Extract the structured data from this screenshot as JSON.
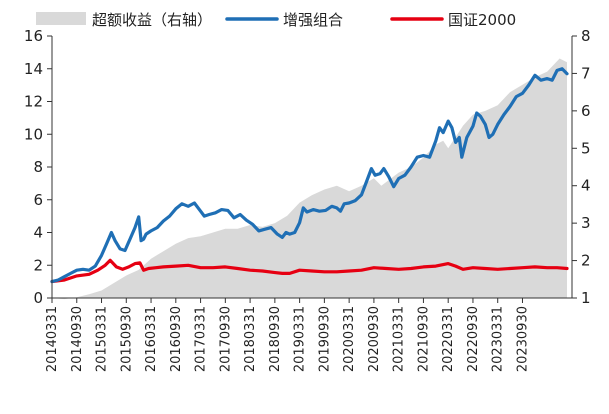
{
  "chart_data": {
    "type": "line",
    "legend": {
      "position": "top",
      "entries": [
        {
          "label": "超额收益（右轴）",
          "color": "#d9d9d9",
          "kind": "area"
        },
        {
          "label": "增强组合",
          "color": "#1f6fb5",
          "kind": "line"
        },
        {
          "label": "国证2000",
          "color": "#e60012",
          "kind": "line"
        }
      ]
    },
    "y_left": {
      "min": 0,
      "max": 16,
      "ticks": [
        "0",
        "2",
        "4",
        "6",
        "8",
        "10",
        "12",
        "14",
        "16"
      ]
    },
    "y_right": {
      "min": 1,
      "max": 8,
      "ticks": [
        "1",
        "2",
        "3",
        "4",
        "5",
        "6",
        "7",
        "8"
      ]
    },
    "x_ticks": [
      "20140331",
      "20140930",
      "20150331",
      "20150930",
      "20160331",
      "20160930",
      "20170331",
      "20170930",
      "20180331",
      "20180930",
      "20190331",
      "20190930",
      "20200331",
      "20200930",
      "20210331",
      "20210930",
      "20220331",
      "20220930",
      "20230331",
      "20230930"
    ],
    "grid": false,
    "series": [
      {
        "name": "增强组合",
        "axis": "left",
        "color": "#1f6fb5",
        "points": [
          [
            0,
            1.0
          ],
          [
            0.25,
            1.1
          ],
          [
            0.5,
            1.3
          ],
          [
            0.75,
            1.5
          ],
          [
            1.0,
            1.7
          ],
          [
            1.25,
            1.75
          ],
          [
            1.5,
            1.7
          ],
          [
            1.75,
            1.95
          ],
          [
            2.0,
            2.6
          ],
          [
            2.2,
            3.3
          ],
          [
            2.4,
            4.0
          ],
          [
            2.55,
            3.5
          ],
          [
            2.75,
            3.0
          ],
          [
            2.95,
            2.9
          ],
          [
            3.15,
            3.6
          ],
          [
            3.35,
            4.3
          ],
          [
            3.5,
            4.95
          ],
          [
            3.6,
            3.5
          ],
          [
            3.7,
            3.6
          ],
          [
            3.8,
            3.9
          ],
          [
            4.0,
            4.1
          ],
          [
            4.25,
            4.3
          ],
          [
            4.5,
            4.7
          ],
          [
            4.75,
            5.0
          ],
          [
            5.0,
            5.45
          ],
          [
            5.25,
            5.75
          ],
          [
            5.5,
            5.6
          ],
          [
            5.75,
            5.8
          ],
          [
            6.0,
            5.3
          ],
          [
            6.15,
            5.0
          ],
          [
            6.35,
            5.1
          ],
          [
            6.6,
            5.2
          ],
          [
            6.85,
            5.4
          ],
          [
            7.1,
            5.35
          ],
          [
            7.35,
            4.9
          ],
          [
            7.6,
            5.1
          ],
          [
            7.85,
            4.75
          ],
          [
            8.1,
            4.5
          ],
          [
            8.35,
            4.1
          ],
          [
            8.6,
            4.2
          ],
          [
            8.85,
            4.3
          ],
          [
            9.1,
            3.9
          ],
          [
            9.3,
            3.7
          ],
          [
            9.45,
            4.0
          ],
          [
            9.6,
            3.9
          ],
          [
            9.8,
            4.0
          ],
          [
            10.0,
            4.6
          ],
          [
            10.15,
            5.5
          ],
          [
            10.3,
            5.25
          ],
          [
            10.55,
            5.4
          ],
          [
            10.8,
            5.3
          ],
          [
            11.05,
            5.35
          ],
          [
            11.3,
            5.6
          ],
          [
            11.5,
            5.5
          ],
          [
            11.65,
            5.3
          ],
          [
            11.8,
            5.75
          ],
          [
            12.0,
            5.8
          ],
          [
            12.25,
            5.95
          ],
          [
            12.5,
            6.3
          ],
          [
            12.75,
            7.3
          ],
          [
            12.9,
            7.9
          ],
          [
            13.05,
            7.5
          ],
          [
            13.25,
            7.6
          ],
          [
            13.4,
            7.9
          ],
          [
            13.6,
            7.4
          ],
          [
            13.8,
            6.8
          ],
          [
            14.0,
            7.3
          ],
          [
            14.25,
            7.5
          ],
          [
            14.5,
            8.0
          ],
          [
            14.75,
            8.6
          ],
          [
            15.0,
            8.7
          ],
          [
            15.25,
            8.6
          ],
          [
            15.5,
            9.6
          ],
          [
            15.65,
            10.4
          ],
          [
            15.8,
            10.1
          ],
          [
            16.0,
            10.8
          ],
          [
            16.15,
            10.4
          ],
          [
            16.3,
            9.5
          ],
          [
            16.45,
            9.8
          ],
          [
            16.55,
            8.6
          ],
          [
            16.75,
            9.8
          ],
          [
            17.0,
            10.5
          ],
          [
            17.15,
            11.3
          ],
          [
            17.3,
            11.1
          ],
          [
            17.5,
            10.6
          ],
          [
            17.65,
            9.8
          ],
          [
            17.8,
            10.0
          ],
          [
            18.0,
            10.6
          ],
          [
            18.25,
            11.2
          ],
          [
            18.5,
            11.7
          ],
          [
            18.75,
            12.3
          ],
          [
            19.0,
            12.5
          ],
          [
            19.25,
            13.0
          ],
          [
            19.5,
            13.6
          ],
          [
            19.75,
            13.3
          ],
          [
            20.0,
            13.4
          ],
          [
            20.2,
            13.3
          ],
          [
            20.4,
            13.9
          ],
          [
            20.6,
            14.0
          ],
          [
            20.8,
            13.7
          ]
        ]
      },
      {
        "name": "国证2000",
        "axis": "left",
        "color": "#e60012",
        "points": [
          [
            0,
            1.0
          ],
          [
            0.5,
            1.1
          ],
          [
            1.0,
            1.35
          ],
          [
            1.5,
            1.45
          ],
          [
            1.85,
            1.7
          ],
          [
            2.15,
            2.0
          ],
          [
            2.35,
            2.3
          ],
          [
            2.6,
            1.9
          ],
          [
            2.85,
            1.75
          ],
          [
            3.1,
            1.9
          ],
          [
            3.35,
            2.1
          ],
          [
            3.55,
            2.15
          ],
          [
            3.7,
            1.7
          ],
          [
            3.9,
            1.8
          ],
          [
            4.2,
            1.85
          ],
          [
            4.5,
            1.9
          ],
          [
            5.0,
            1.95
          ],
          [
            5.5,
            2.0
          ],
          [
            6.0,
            1.85
          ],
          [
            6.5,
            1.85
          ],
          [
            7.0,
            1.9
          ],
          [
            7.5,
            1.8
          ],
          [
            8.0,
            1.7
          ],
          [
            8.5,
            1.65
          ],
          [
            9.0,
            1.55
          ],
          [
            9.3,
            1.5
          ],
          [
            9.6,
            1.5
          ],
          [
            10.0,
            1.7
          ],
          [
            10.5,
            1.65
          ],
          [
            11.0,
            1.6
          ],
          [
            11.5,
            1.6
          ],
          [
            12.0,
            1.65
          ],
          [
            12.5,
            1.7
          ],
          [
            13.0,
            1.85
          ],
          [
            13.5,
            1.8
          ],
          [
            14.0,
            1.75
          ],
          [
            14.5,
            1.8
          ],
          [
            15.0,
            1.9
          ],
          [
            15.5,
            1.95
          ],
          [
            16.0,
            2.1
          ],
          [
            16.3,
            1.95
          ],
          [
            16.6,
            1.75
          ],
          [
            17.0,
            1.85
          ],
          [
            17.5,
            1.8
          ],
          [
            18.0,
            1.75
          ],
          [
            18.5,
            1.8
          ],
          [
            19.0,
            1.85
          ],
          [
            19.5,
            1.9
          ],
          [
            20.0,
            1.85
          ],
          [
            20.4,
            1.85
          ],
          [
            20.8,
            1.8
          ]
        ]
      },
      {
        "name": "超额收益（右轴）",
        "axis": "right",
        "color": "#d9d9d9",
        "type": "area",
        "points": [
          [
            0,
            1.0
          ],
          [
            0.5,
            0.97
          ],
          [
            1.0,
            1.02
          ],
          [
            1.5,
            1.1
          ],
          [
            2.0,
            1.2
          ],
          [
            2.5,
            1.4
          ],
          [
            3.0,
            1.6
          ],
          [
            3.5,
            1.75
          ],
          [
            4.0,
            2.05
          ],
          [
            4.5,
            2.25
          ],
          [
            5.0,
            2.45
          ],
          [
            5.5,
            2.6
          ],
          [
            6.0,
            2.65
          ],
          [
            6.5,
            2.75
          ],
          [
            7.0,
            2.85
          ],
          [
            7.5,
            2.85
          ],
          [
            8.0,
            2.95
          ],
          [
            8.5,
            2.9
          ],
          [
            9.0,
            3.0
          ],
          [
            9.5,
            3.2
          ],
          [
            10.0,
            3.55
          ],
          [
            10.5,
            3.75
          ],
          [
            11.0,
            3.9
          ],
          [
            11.5,
            4.0
          ],
          [
            12.0,
            3.85
          ],
          [
            12.5,
            4.0
          ],
          [
            13.0,
            4.2
          ],
          [
            13.3,
            4.0
          ],
          [
            13.5,
            4.1
          ],
          [
            14.0,
            4.35
          ],
          [
            14.5,
            4.5
          ],
          [
            15.0,
            4.75
          ],
          [
            15.5,
            5.1
          ],
          [
            15.8,
            5.2
          ],
          [
            16.0,
            5.0
          ],
          [
            16.3,
            5.3
          ],
          [
            16.6,
            5.6
          ],
          [
            17.0,
            5.9
          ],
          [
            17.5,
            6.0
          ],
          [
            18.0,
            6.15
          ],
          [
            18.5,
            6.5
          ],
          [
            19.0,
            6.7
          ],
          [
            19.5,
            6.9
          ],
          [
            20.0,
            7.05
          ],
          [
            20.5,
            7.4
          ],
          [
            20.8,
            7.3
          ]
        ]
      }
    ]
  }
}
